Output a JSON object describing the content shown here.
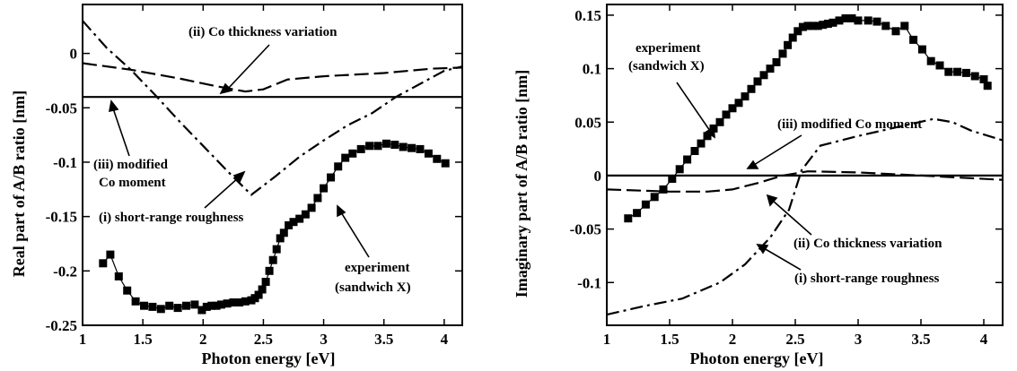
{
  "chart_data": [
    {
      "type": "line",
      "xlabel": "Photon energy [eV]",
      "ylabel": "Real part of A/B ratio [nm]",
      "xlim": [
        1.0,
        4.15
      ],
      "ylim": [
        -0.25,
        0.045
      ],
      "xticks": [
        1,
        1.5,
        2,
        2.5,
        3,
        3.5,
        4
      ],
      "xtick_labels": [
        "1",
        "1.5",
        "2",
        "2.5",
        "3",
        "3.5",
        "4"
      ],
      "yticks": [
        -0.25,
        -0.2,
        -0.15,
        -0.1,
        -0.05,
        0
      ],
      "ytick_labels": [
        "-0.25",
        "-0.2",
        "-0.15",
        "-0.1",
        "-0.05",
        "0"
      ],
      "series": [
        {
          "style": "experiment",
          "x": [
            1.17,
            1.23,
            1.3,
            1.37,
            1.44,
            1.51,
            1.58,
            1.65,
            1.72,
            1.79,
            1.86,
            1.93,
            1.99,
            2.03,
            2.07,
            2.11,
            2.15,
            2.2,
            2.25,
            2.3,
            2.35,
            2.4,
            2.43,
            2.46,
            2.49,
            2.52,
            2.55,
            2.58,
            2.61,
            2.64,
            2.67,
            2.71,
            2.75,
            2.8,
            2.85,
            2.9,
            2.95,
            3.0,
            3.06,
            3.12,
            3.18,
            3.24,
            3.31,
            3.38,
            3.45,
            3.52,
            3.59,
            3.66,
            3.73,
            3.8,
            3.87,
            3.94,
            4.01
          ],
          "y": [
            -0.193,
            -0.185,
            -0.205,
            -0.218,
            -0.228,
            -0.232,
            -0.233,
            -0.235,
            -0.232,
            -0.234,
            -0.232,
            -0.231,
            -0.236,
            -0.233,
            -0.232,
            -0.232,
            -0.231,
            -0.23,
            -0.229,
            -0.229,
            -0.228,
            -0.227,
            -0.225,
            -0.222,
            -0.217,
            -0.21,
            -0.2,
            -0.19,
            -0.18,
            -0.17,
            -0.165,
            -0.158,
            -0.155,
            -0.152,
            -0.148,
            -0.142,
            -0.133,
            -0.124,
            -0.114,
            -0.104,
            -0.096,
            -0.092,
            -0.088,
            -0.085,
            -0.085,
            -0.083,
            -0.084,
            -0.086,
            -0.087,
            -0.088,
            -0.092,
            -0.097,
            -0.101
          ]
        },
        {
          "style": "dashdot",
          "x": [
            1.0,
            1.2,
            1.4,
            1.6,
            1.8,
            2.0,
            2.2,
            2.4,
            2.6,
            2.8,
            3.0,
            3.2,
            3.4,
            3.6,
            3.8,
            4.0,
            4.15
          ],
          "y": [
            0.03,
            0.005,
            -0.015,
            -0.038,
            -0.062,
            -0.085,
            -0.108,
            -0.13,
            -0.113,
            -0.095,
            -0.08,
            -0.066,
            -0.055,
            -0.04,
            -0.028,
            -0.016,
            -0.012
          ]
        },
        {
          "style": "dashed",
          "x": [
            1.0,
            1.4,
            1.8,
            2.1,
            2.35,
            2.5,
            2.7,
            3.0,
            3.5,
            3.9,
            4.15
          ],
          "y": [
            -0.009,
            -0.015,
            -0.023,
            -0.03,
            -0.035,
            -0.033,
            -0.024,
            -0.021,
            -0.018,
            -0.014,
            -0.013
          ]
        },
        {
          "style": "solid",
          "x": [
            1.0,
            4.15
          ],
          "y": [
            -0.04,
            -0.04
          ]
        }
      ],
      "annotations": [
        {
          "text": "(ii) Co thickness variation"
        },
        {
          "text": "(iii) modified"
        },
        {
          "text": "Co moment"
        },
        {
          "text": "(i) short-range roughness"
        },
        {
          "text": "experiment"
        },
        {
          "text": "(sandwich X)"
        }
      ]
    },
    {
      "type": "line",
      "xlabel": "Photon energy [eV]",
      "ylabel": "Imaginary part of A/B ratio [nm]",
      "xlim": [
        1.0,
        4.15
      ],
      "ylim": [
        -0.14,
        0.16
      ],
      "xticks": [
        1,
        1.5,
        2,
        2.5,
        3,
        3.5,
        4
      ],
      "xtick_labels": [
        "1",
        "1.5",
        "2",
        "2.5",
        "3",
        "3.5",
        "4"
      ],
      "yticks": [
        -0.1,
        -0.05,
        0,
        0.05,
        0.1,
        0.15
      ],
      "ytick_labels": [
        "-0.1",
        "-0.05",
        "0",
        "0.05",
        "0.1",
        "0.15"
      ],
      "series": [
        {
          "style": "experiment",
          "x": [
            1.17,
            1.24,
            1.31,
            1.38,
            1.45,
            1.52,
            1.58,
            1.64,
            1.7,
            1.75,
            1.8,
            1.85,
            1.9,
            1.95,
            2.0,
            2.05,
            2.1,
            2.15,
            2.2,
            2.25,
            2.3,
            2.35,
            2.4,
            2.44,
            2.48,
            2.52,
            2.56,
            2.6,
            2.64,
            2.68,
            2.72,
            2.76,
            2.8,
            2.85,
            2.9,
            2.95,
            3.0,
            3.08,
            3.15,
            3.22,
            3.3,
            3.37,
            3.44,
            3.51,
            3.58,
            3.65,
            3.72,
            3.79,
            3.86,
            3.93,
            4.0,
            4.03
          ],
          "y": [
            -0.04,
            -0.035,
            -0.027,
            -0.02,
            -0.013,
            -0.003,
            0.006,
            0.015,
            0.023,
            0.03,
            0.037,
            0.044,
            0.05,
            0.057,
            0.063,
            0.068,
            0.074,
            0.081,
            0.088,
            0.094,
            0.1,
            0.106,
            0.114,
            0.122,
            0.129,
            0.135,
            0.139,
            0.14,
            0.14,
            0.14,
            0.141,
            0.142,
            0.143,
            0.145,
            0.147,
            0.147,
            0.145,
            0.145,
            0.144,
            0.14,
            0.135,
            0.14,
            0.127,
            0.118,
            0.107,
            0.103,
            0.097,
            0.097,
            0.096,
            0.093,
            0.09,
            0.084
          ]
        },
        {
          "style": "dashdot",
          "x": [
            1.0,
            1.3,
            1.6,
            1.9,
            2.1,
            2.3,
            2.45,
            2.55,
            2.7,
            3.0,
            3.3,
            3.6,
            3.75,
            3.9,
            4.15
          ],
          "y": [
            -0.13,
            -0.122,
            -0.115,
            -0.1,
            -0.083,
            -0.058,
            -0.032,
            0.005,
            0.028,
            0.037,
            0.045,
            0.053,
            0.05,
            0.042,
            0.033
          ]
        },
        {
          "style": "dashed",
          "x": [
            1.0,
            1.5,
            1.8,
            2.0,
            2.2,
            2.4,
            2.6,
            3.0,
            3.5,
            4.15
          ],
          "y": [
            -0.013,
            -0.015,
            -0.015,
            -0.013,
            -0.007,
            0.0,
            0.004,
            0.003,
            0.0,
            -0.004
          ]
        },
        {
          "style": "solid",
          "x": [
            1.0,
            4.15
          ],
          "y": [
            0.0,
            0.0
          ]
        }
      ],
      "annotations": [
        {
          "text": "experiment"
        },
        {
          "text": "(sandwich X)"
        },
        {
          "text": "(iii) modified Co moment"
        },
        {
          "text": "(ii) Co thickness variation"
        },
        {
          "text": "(i) short-range roughness"
        }
      ]
    }
  ]
}
